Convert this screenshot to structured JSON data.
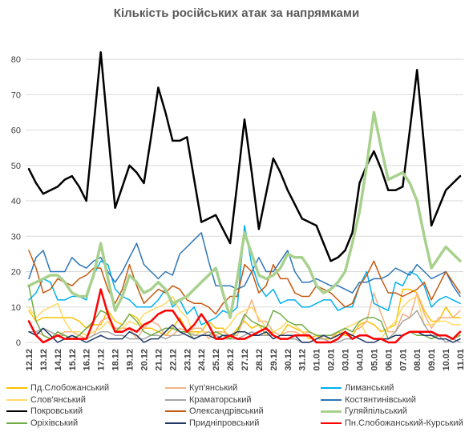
{
  "chart_data": {
    "type": "line",
    "title": "Кількість російських атак за напрямками",
    "ylim": [
      0,
      85
    ],
    "yticks": [
      0,
      10,
      20,
      30,
      40,
      50,
      60,
      70,
      80
    ],
    "grid": "horizontal",
    "legend_position": "bottom",
    "categories": [
      "12.12",
      "13.12",
      "14.12",
      "15.12",
      "16.12",
      "17.12",
      "18.12",
      "19.12",
      "20.12",
      "21.12",
      "22.12",
      "23.12",
      "24.12",
      "25.12",
      "26.12",
      "27.12",
      "28.12",
      "29.12",
      "30.12",
      "31.12",
      "01.01",
      "02.01",
      "03.01",
      "04.01",
      "05.01",
      "06.01",
      "07.01",
      "08.01",
      "09.01",
      "10.01",
      "11.01"
    ],
    "x": [
      "12.12",
      "12.12",
      "13.12",
      "13.12",
      "14.12",
      "14.12",
      "15.12",
      "15.12",
      "16.12",
      "16.12",
      "17.12",
      "17.12",
      "18.12",
      "18.12",
      "19.12",
      "19.12",
      "20.12",
      "20.12",
      "21.12",
      "21.12",
      "22.12",
      "22.12",
      "23.12",
      "23.12",
      "24.12",
      "24.12",
      "25.12",
      "25.12",
      "26.12",
      "26.12",
      "27.12",
      "27.12",
      "28.12",
      "28.12",
      "29.12",
      "29.12",
      "30.12",
      "30.12",
      "31.12",
      "31.12",
      "01.01",
      "01.01",
      "02.01",
      "02.01",
      "03.01",
      "03.01",
      "04.01",
      "04.01",
      "05.01",
      "05.01",
      "06.01",
      "06.01",
      "07.01",
      "07.01",
      "08.01",
      "08.01",
      "09.01",
      "09.01",
      "10.01",
      "10.01",
      "11.01"
    ],
    "series": [
      {
        "name": "Пд.Слобожанський",
        "color": "#ffc000",
        "width": 1.5,
        "values": [
          9,
          6,
          7,
          7,
          7,
          7,
          7,
          6,
          4,
          5,
          5,
          9,
          6,
          5,
          8,
          7,
          4,
          4,
          3,
          2,
          4,
          7,
          3,
          3,
          3,
          6,
          4,
          4,
          1,
          4,
          6,
          4,
          5,
          2,
          3,
          2,
          5,
          4,
          3,
          1,
          2,
          1,
          1,
          3,
          2,
          2,
          5,
          6,
          5,
          3,
          4,
          5,
          15,
          15,
          14,
          9,
          6,
          6,
          10,
          7,
          7
        ]
      },
      {
        "name": "Куп'янський",
        "color": "#f4b183",
        "width": 1.5,
        "values": [
          3,
          3,
          2,
          1,
          2,
          3,
          3,
          2,
          1,
          2,
          6,
          7,
          4,
          4,
          4,
          1,
          4,
          6,
          5,
          2,
          2,
          4,
          3,
          4,
          4,
          1,
          3,
          3,
          2,
          2,
          7,
          12,
          6,
          6,
          3,
          2,
          3,
          3,
          2,
          3,
          2,
          2,
          2,
          2,
          4,
          3,
          4,
          6,
          14,
          8,
          3,
          3,
          8,
          7,
          14,
          8,
          4,
          7,
          7,
          7,
          9
        ]
      },
      {
        "name": "Лиманський",
        "color": "#00b0f0",
        "width": 1.5,
        "values": [
          12,
          14,
          18,
          17,
          12,
          12,
          13,
          13,
          12,
          19,
          23,
          22,
          15,
          13,
          12,
          10,
          10,
          10,
          12,
          15,
          10,
          12,
          8,
          10,
          5,
          6,
          7,
          9,
          8,
          10,
          33,
          22,
          16,
          13,
          15,
          11,
          12,
          12,
          10,
          10,
          11,
          12,
          12,
          9,
          10,
          10,
          16,
          20,
          11,
          10,
          9,
          17,
          16,
          20,
          19,
          16,
          10,
          12,
          13,
          12,
          11
        ]
      },
      {
        "name": "Слов'янський",
        "color": "#ffd966",
        "width": 1.5,
        "values": [
          10,
          7,
          9,
          10,
          11,
          6,
          3,
          3,
          2,
          3,
          4,
          6,
          3,
          4,
          6,
          5,
          8,
          9,
          10,
          11,
          13,
          9,
          7,
          2,
          3,
          3,
          2,
          3,
          5,
          8,
          9,
          10,
          7,
          4,
          3,
          4,
          6,
          5,
          3,
          3,
          2,
          2,
          1,
          2,
          4,
          5,
          6,
          2,
          1,
          1,
          4,
          6,
          10,
          12,
          13,
          5,
          5,
          6,
          6,
          5,
          5
        ]
      },
      {
        "name": "Краматорський",
        "color": "#a5a5a5",
        "width": 1.5,
        "values": [
          3,
          3,
          4,
          3,
          2,
          2,
          1,
          1,
          1,
          2,
          3,
          3,
          2,
          2,
          1,
          1,
          1,
          2,
          2,
          1,
          2,
          2,
          3,
          2,
          2,
          3,
          2,
          1,
          1,
          1,
          2,
          3,
          2,
          2,
          2,
          1,
          1,
          1,
          0,
          0,
          1,
          1,
          0,
          0,
          1,
          1,
          2,
          2,
          1,
          1,
          1,
          3,
          6,
          7,
          9,
          5,
          2,
          2,
          0,
          1,
          0
        ]
      },
      {
        "name": "Костянтинівський",
        "color": "#2e75b6",
        "width": 1.5,
        "values": [
          18,
          24,
          26,
          20,
          20,
          20,
          24,
          22,
          21,
          23,
          24,
          20,
          17,
          20,
          24,
          28,
          22,
          20,
          18,
          20,
          19,
          25,
          27,
          29,
          31,
          23,
          16,
          16,
          16,
          15,
          16,
          20,
          24,
          20,
          20,
          23,
          26,
          20,
          17,
          17,
          18,
          17,
          16,
          16,
          15,
          14,
          17,
          17,
          18,
          18,
          19,
          21,
          20,
          19,
          22,
          20,
          18,
          19,
          20,
          16,
          13
        ]
      },
      {
        "name": "Покровський",
        "color": "#000000",
        "width": 2.5,
        "values": [
          49,
          45,
          42,
          43,
          44,
          46,
          47,
          44,
          40,
          61,
          82,
          60,
          38,
          44,
          50,
          48,
          45,
          58,
          72,
          65,
          57,
          57,
          58,
          46,
          34,
          35,
          36,
          32,
          28,
          45,
          63,
          48,
          32,
          42,
          52,
          48,
          43,
          39,
          35,
          34,
          33,
          28,
          23,
          24,
          26,
          31,
          45,
          50,
          54,
          49,
          43,
          43,
          44,
          60,
          77,
          55,
          33,
          38,
          43,
          45,
          47
        ]
      },
      {
        "name": "Олександрівський",
        "color": "#c55a11",
        "width": 1.5,
        "values": [
          26,
          21,
          14,
          15,
          18,
          17,
          16,
          18,
          19,
          21,
          21,
          15,
          11,
          15,
          22,
          16,
          11,
          13,
          15,
          14,
          16,
          15,
          12,
          11,
          11,
          10,
          8,
          11,
          13,
          13,
          22,
          20,
          14,
          16,
          22,
          18,
          18,
          14,
          13,
          13,
          16,
          15,
          14,
          12,
          10,
          11,
          16,
          19,
          23,
          18,
          14,
          14,
          13,
          14,
          15,
          17,
          12,
          16,
          20,
          17,
          14
        ]
      },
      {
        "name": "Гуляйпільський",
        "color": "#a9d18e",
        "width": 3.5,
        "values": [
          16,
          17,
          18,
          19,
          19,
          17,
          14,
          13,
          13,
          19,
          28,
          18,
          9,
          13,
          19,
          17,
          14,
          15,
          17,
          15,
          11,
          12,
          13,
          15,
          17,
          19,
          21,
          14,
          7,
          18,
          31,
          25,
          19,
          18,
          19,
          21,
          25,
          24,
          24,
          21,
          16,
          14,
          15,
          17,
          20,
          28,
          37,
          50,
          65,
          55,
          46,
          47,
          48,
          45,
          40,
          30,
          21,
          24,
          27,
          25,
          23
        ]
      },
      {
        "name": "Оріхівський",
        "color": "#70ad47",
        "width": 1.5,
        "values": [
          16,
          6,
          2,
          1,
          3,
          2,
          1,
          2,
          4,
          6,
          9,
          8,
          3,
          5,
          8,
          6,
          3,
          2,
          3,
          4,
          4,
          3,
          3,
          1,
          2,
          2,
          3,
          2,
          1,
          3,
          8,
          6,
          5,
          4,
          9,
          8,
          6,
          5,
          5,
          3,
          2,
          2,
          2,
          3,
          4,
          3,
          6,
          7,
          7,
          6,
          1,
          2,
          2,
          3,
          2,
          2,
          1,
          2,
          2,
          1,
          2
        ]
      },
      {
        "name": "Придніпровський",
        "color": "#203864",
        "width": 1.5,
        "values": [
          3,
          2,
          4,
          2,
          0,
          1,
          2,
          1,
          0,
          1,
          2,
          1,
          1,
          1,
          3,
          2,
          0,
          1,
          1,
          3,
          5,
          3,
          2,
          1,
          2,
          2,
          1,
          2,
          2,
          3,
          3,
          2,
          2,
          3,
          1,
          2,
          2,
          2,
          0,
          0,
          1,
          2,
          1,
          2,
          3,
          2,
          1,
          0,
          0,
          1,
          1,
          2,
          2,
          3,
          3,
          2,
          2,
          1,
          1,
          0,
          1
        ]
      },
      {
        "name": "Пн.Слобожанський-Курський",
        "color": "#ff0000",
        "width": 2.5,
        "values": [
          6,
          2,
          0,
          1,
          2,
          1,
          1,
          1,
          1,
          6,
          15,
          8,
          3,
          3,
          4,
          3,
          5,
          6,
          8,
          9,
          9,
          6,
          3,
          5,
          8,
          5,
          1,
          1,
          2,
          1,
          1,
          2,
          3,
          4,
          2,
          1,
          1,
          2,
          2,
          2,
          0,
          0,
          0,
          1,
          3,
          1,
          2,
          2,
          1,
          1,
          0,
          0,
          2,
          3,
          3,
          3,
          3,
          2,
          2,
          1,
          3
        ]
      }
    ]
  }
}
